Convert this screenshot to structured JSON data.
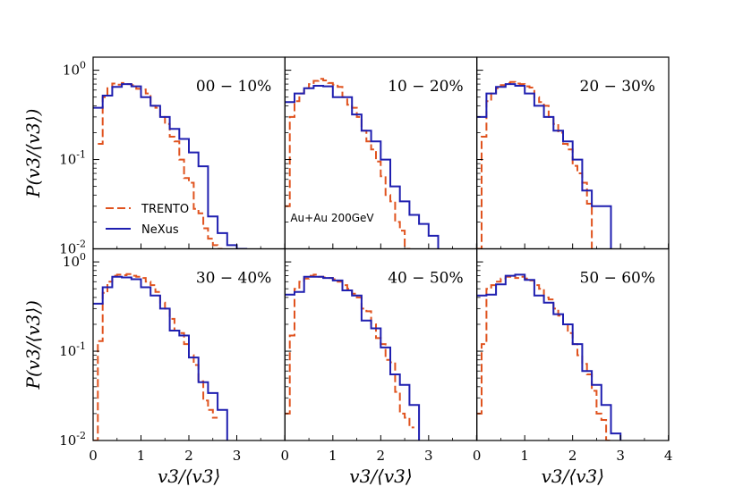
{
  "chart_data": {
    "type": "line",
    "step": true,
    "scale_y": "log",
    "xlim": [
      0,
      4
    ],
    "ylim": [
      0.01,
      1.4
    ],
    "x_ticks": [
      "0",
      "1",
      "2",
      "3",
      "4"
    ],
    "y_ticks": [
      "10^0",
      "10^-1",
      "10^-2"
    ],
    "xlabel": "v3/⟨v3⟩",
    "ylabel": "P(v3/⟨v3⟩)",
    "legend": [
      {
        "name": "TRENTO",
        "style": "dashed",
        "color": "#e0531f"
      },
      {
        "name": "NeXus",
        "style": "solid",
        "color": "#1f1fb0"
      }
    ],
    "annotation": "Au+Au 200GeV",
    "panels": [
      {
        "label": "00 − 10%",
        "series": [
          {
            "name": "TRENTO",
            "edges": [
              0.1,
              0.2,
              0.3,
              0.4,
              0.5,
              0.6,
              0.7,
              0.8,
              0.9,
              1.0,
              1.1,
              1.2,
              1.3,
              1.4,
              1.5,
              1.6,
              1.7,
              1.8,
              1.9,
              2.0,
              2.1,
              2.2,
              2.3,
              2.4,
              2.5,
              2.6,
              2.7
            ],
            "values": [
              0.15,
              0.5,
              0.63,
              0.71,
              0.69,
              0.72,
              0.7,
              0.68,
              0.62,
              0.61,
              0.55,
              0.4,
              0.38,
              0.3,
              0.25,
              0.18,
              0.16,
              0.1,
              0.062,
              0.055,
              0.028,
              0.025,
              0.017,
              0.013,
              0.011,
              0.01
            ]
          },
          {
            "name": "NeXus",
            "edges": [
              0.0,
              0.2,
              0.4,
              0.6,
              0.8,
              1.0,
              1.2,
              1.4,
              1.6,
              1.8,
              2.0,
              2.2,
              2.4,
              2.6,
              2.8,
              3.0,
              3.2,
              3.4
            ],
            "values": [
              0.38,
              0.52,
              0.65,
              0.7,
              0.66,
              0.5,
              0.4,
              0.3,
              0.22,
              0.17,
              0.12,
              0.084,
              0.023,
              0.015,
              0.011,
              0.01,
              0.009
            ]
          }
        ]
      },
      {
        "label": "10 − 20%",
        "series": [
          {
            "name": "TRENTO",
            "edges": [
              0.0,
              0.1,
              0.2,
              0.3,
              0.4,
              0.5,
              0.6,
              0.7,
              0.8,
              0.9,
              1.0,
              1.1,
              1.2,
              1.3,
              1.4,
              1.5,
              1.6,
              1.7,
              1.8,
              1.9,
              2.0,
              2.1,
              2.2,
              2.3,
              2.4,
              2.5,
              2.6,
              2.7
            ],
            "values": [
              0.03,
              0.3,
              0.45,
              0.55,
              0.63,
              0.7,
              0.76,
              0.8,
              0.77,
              0.72,
              0.69,
              0.65,
              0.5,
              0.41,
              0.38,
              0.3,
              0.21,
              0.16,
              0.13,
              0.095,
              0.065,
              0.04,
              0.034,
              0.02,
              0.016,
              0.01,
              0.009
            ]
          },
          {
            "name": "NeXus",
            "edges": [
              0.0,
              0.2,
              0.4,
              0.6,
              0.8,
              1.0,
              1.2,
              1.4,
              1.6,
              1.8,
              2.0,
              2.2,
              2.4,
              2.6,
              2.8,
              3.0,
              3.2,
              3.4
            ],
            "values": [
              0.44,
              0.55,
              0.63,
              0.67,
              0.66,
              0.5,
              0.5,
              0.32,
              0.21,
              0.16,
              0.1,
              0.05,
              0.034,
              0.024,
              0.019,
              0.014,
              0.009
            ]
          }
        ]
      },
      {
        "label": "20 − 30%",
        "series": [
          {
            "name": "TRENTO",
            "edges": [
              0.0,
              0.1,
              0.2,
              0.3,
              0.4,
              0.5,
              0.6,
              0.7,
              0.8,
              0.9,
              1.0,
              1.1,
              1.2,
              1.3,
              1.4,
              1.5,
              1.6,
              1.7,
              1.8,
              1.9,
              2.0,
              2.1,
              2.2,
              2.3,
              2.4,
              2.5
            ],
            "values": [
              0.01,
              0.18,
              0.45,
              0.55,
              0.63,
              0.68,
              0.72,
              0.74,
              0.71,
              0.7,
              0.66,
              0.64,
              0.5,
              0.44,
              0.4,
              0.3,
              0.25,
              0.2,
              0.15,
              0.13,
              0.085,
              0.07,
              0.055,
              0.032,
              0.009
            ]
          },
          {
            "name": "NeXus",
            "edges": [
              0.0,
              0.2,
              0.4,
              0.6,
              0.8,
              1.0,
              1.2,
              1.4,
              1.6,
              1.8,
              2.0,
              2.2,
              2.4,
              2.6,
              2.8,
              3.0
            ],
            "values": [
              0.3,
              0.55,
              0.65,
              0.7,
              0.67,
              0.55,
              0.4,
              0.3,
              0.21,
              0.16,
              0.1,
              0.045,
              0.03,
              0.03,
              0.009
            ]
          }
        ]
      },
      {
        "label": "30 − 40%",
        "series": [
          {
            "name": "TRENTO",
            "edges": [
              0.0,
              0.1,
              0.2,
              0.3,
              0.4,
              0.5,
              0.6,
              0.7,
              0.8,
              0.9,
              1.0,
              1.1,
              1.2,
              1.3,
              1.4,
              1.5,
              1.6,
              1.7,
              1.8,
              1.9,
              2.0,
              2.1,
              2.2,
              2.3,
              2.4,
              2.5,
              2.6
            ],
            "values": [
              0.01,
              0.13,
              0.45,
              0.6,
              0.7,
              0.72,
              0.71,
              0.73,
              0.7,
              0.68,
              0.66,
              0.6,
              0.55,
              0.46,
              0.35,
              0.3,
              0.23,
              0.17,
              0.16,
              0.12,
              0.09,
              0.07,
              0.046,
              0.028,
              0.022,
              0.018
            ]
          },
          {
            "name": "NeXus",
            "edges": [
              0.0,
              0.2,
              0.4,
              0.6,
              0.8,
              1.0,
              1.2,
              1.4,
              1.6,
              1.8,
              2.0,
              2.2,
              2.4,
              2.6,
              2.8
            ],
            "values": [
              0.34,
              0.52,
              0.68,
              0.67,
              0.64,
              0.52,
              0.42,
              0.3,
              0.17,
              0.15,
              0.085,
              0.045,
              0.034,
              0.022,
              0.009
            ]
          }
        ]
      },
      {
        "label": "40 − 50%",
        "series": [
          {
            "name": "TRENTO",
            "edges": [
              0.0,
              0.1,
              0.2,
              0.3,
              0.4,
              0.5,
              0.6,
              0.7,
              0.8,
              0.9,
              1.0,
              1.1,
              1.2,
              1.3,
              1.4,
              1.5,
              1.6,
              1.7,
              1.8,
              1.9,
              2.0,
              2.1,
              2.2,
              2.3,
              2.4,
              2.5,
              2.6,
              2.7
            ],
            "values": [
              0.02,
              0.15,
              0.5,
              0.6,
              0.65,
              0.7,
              0.72,
              0.68,
              0.67,
              0.66,
              0.64,
              0.6,
              0.55,
              0.5,
              0.44,
              0.4,
              0.3,
              0.28,
              0.2,
              0.14,
              0.12,
              0.08,
              0.075,
              0.035,
              0.02,
              0.018,
              0.014
            ]
          },
          {
            "name": "NeXus",
            "edges": [
              0.0,
              0.2,
              0.4,
              0.6,
              0.8,
              1.0,
              1.2,
              1.4,
              1.6,
              1.8,
              2.0,
              2.2,
              2.4,
              2.6,
              2.8
            ],
            "values": [
              0.43,
              0.46,
              0.68,
              0.68,
              0.66,
              0.62,
              0.48,
              0.42,
              0.22,
              0.18,
              0.11,
              0.055,
              0.042,
              0.025,
              0.009
            ]
          }
        ]
      },
      {
        "label": "50 − 60%",
        "series": [
          {
            "name": "TRENTO",
            "edges": [
              0.0,
              0.1,
              0.2,
              0.3,
              0.4,
              0.5,
              0.6,
              0.7,
              0.8,
              0.9,
              1.0,
              1.1,
              1.2,
              1.3,
              1.4,
              1.5,
              1.6,
              1.7,
              1.8,
              1.9,
              2.0,
              2.1,
              2.2,
              2.3,
              2.4,
              2.5,
              2.6,
              2.7,
              2.8
            ],
            "values": [
              0.02,
              0.12,
              0.5,
              0.55,
              0.6,
              0.65,
              0.68,
              0.7,
              0.66,
              0.68,
              0.65,
              0.62,
              0.55,
              0.5,
              0.4,
              0.38,
              0.3,
              0.25,
              0.2,
              0.16,
              0.12,
              0.09,
              0.072,
              0.055,
              0.036,
              0.02,
              0.017,
              0.01
            ]
          },
          {
            "name": "NeXus",
            "edges": [
              0.0,
              0.2,
              0.4,
              0.6,
              0.8,
              1.0,
              1.2,
              1.4,
              1.6,
              1.8,
              2.0,
              2.2,
              2.4,
              2.6,
              2.8,
              3.0
            ],
            "values": [
              0.42,
              0.43,
              0.56,
              0.7,
              0.72,
              0.63,
              0.42,
              0.35,
              0.26,
              0.2,
              0.12,
              0.06,
              0.042,
              0.025,
              0.012,
              0.009
            ]
          }
        ]
      }
    ]
  }
}
